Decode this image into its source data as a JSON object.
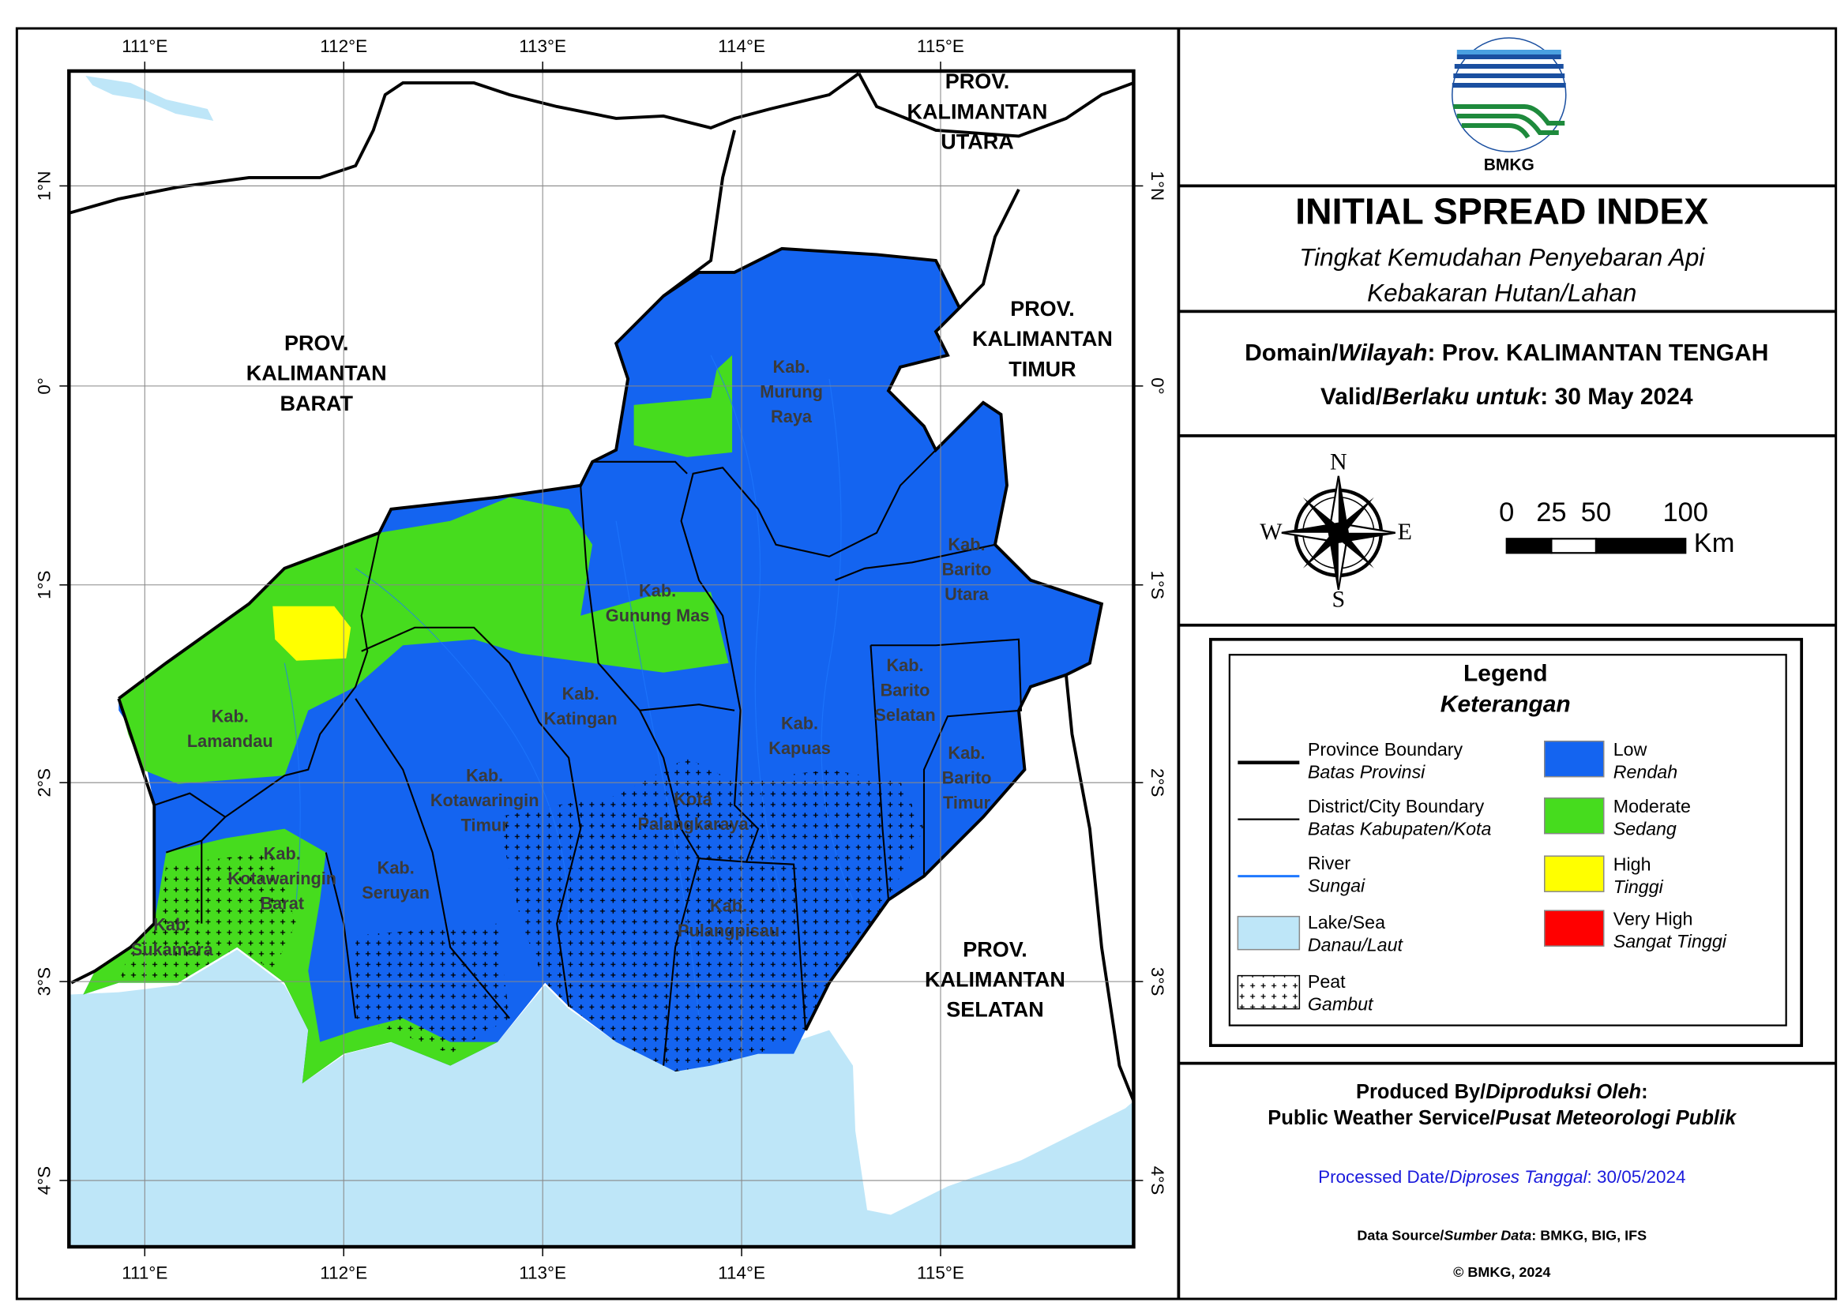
{
  "map": {
    "lon_labels": [
      "111°E",
      "112°E",
      "113°E",
      "114°E",
      "115°E"
    ],
    "lat_labels": [
      "1°N",
      "0°",
      "1°S",
      "2°S",
      "3°S",
      "4°S"
    ],
    "province_labels": [
      [
        "PROV.",
        "KALIMANTAN",
        "UTARA"
      ],
      [
        "PROV.",
        "KALIMANTAN",
        "BARAT"
      ],
      [
        "PROV.",
        "KALIMANTAN",
        "TIMUR"
      ],
      [
        "PROV.",
        "KALIMANTAN",
        "SELATAN"
      ]
    ],
    "district_labels": [
      [
        "Kab.",
        "Murung",
        "Raya"
      ],
      [
        "Kab.",
        "Barito",
        "Utara"
      ],
      [
        "Kab.",
        "Gunung Mas"
      ],
      [
        "Kab.",
        "Barito",
        "Selatan"
      ],
      [
        "Kab.",
        "Katingan"
      ],
      [
        "Kab.",
        "Kapuas"
      ],
      [
        "Kab.",
        "Lamandau"
      ],
      [
        "Kab.",
        "Barito",
        "Timur"
      ],
      [
        "Kab.",
        "Kotawaringin",
        "Timur"
      ],
      [
        "Kota",
        "Palangkaraya"
      ],
      [
        "Kab.",
        "Kotawaringin",
        "Barat"
      ],
      [
        "Kab.",
        "Seruyan"
      ],
      [
        "Kab.",
        "Pulangpisau"
      ],
      [
        "Kab.",
        "Sukamara"
      ]
    ]
  },
  "header": {
    "logo_text": "BMKG",
    "title": "INITIAL SPREAD INDEX",
    "subtitle": [
      "Tingkat Kemudahan Penyebaran Api",
      "Kebakaran Hutan/Lahan"
    ],
    "domain": [
      {
        "text": "Domain/"
      },
      {
        "text": "Wilayah",
        "italic": true
      },
      {
        "text": ": Prov. KALIMANTAN TENGAH"
      }
    ],
    "valid": [
      {
        "text": "Valid/"
      },
      {
        "text": "Berlaku untuk",
        "italic": true
      },
      {
        "text": ": 30 May 2024"
      }
    ]
  },
  "compass": {
    "north": "N",
    "south": "S",
    "east": "E",
    "west": "W"
  },
  "scale": {
    "ticks": [
      0,
      25,
      50,
      100
    ],
    "unit": "Km"
  },
  "legend": {
    "title": "Legend",
    "subtitle": "Keterangan",
    "features": [
      {
        "label": "Province Boundary",
        "sublabel": "Batas Provinsi"
      },
      {
        "label": "District/City Boundary",
        "sublabel": "Batas Kabupaten/Kota"
      },
      {
        "label": "River",
        "sublabel": "Sungai",
        "color": "#1e78ff"
      },
      {
        "label": "Lake/Sea",
        "sublabel": "Danau/Laut",
        "color": "#bee6f8"
      },
      {
        "label": "Peat",
        "sublabel": "Gambut"
      }
    ],
    "classes": [
      {
        "label": "Low",
        "sublabel": "Rendah",
        "color": "#1464f0"
      },
      {
        "label": "Moderate",
        "sublabel": "Sedang",
        "color": "#46dc1e"
      },
      {
        "label": "High",
        "sublabel": "Tinggi",
        "color": "#ffff00"
      },
      {
        "label": "Very High",
        "sublabel": "Sangat Tinggi",
        "color": "#ff0000"
      }
    ]
  },
  "footer": {
    "produced": [
      {
        "text": "Produced By/"
      },
      {
        "text": "Diproduksi Oleh",
        "italic": true
      },
      {
        "text": ":"
      }
    ],
    "service": [
      {
        "text": "Public Weather Service/"
      },
      {
        "text": "Pusat Meteorologi Publik",
        "italic": true
      }
    ],
    "processed": [
      {
        "text": "Processed Date/"
      },
      {
        "text": "Diproses Tanggal",
        "italic": true
      },
      {
        "text": ": 30/05/2024"
      }
    ],
    "source": [
      {
        "text": "Data Source/"
      },
      {
        "text": "Sumber Data",
        "italic": true
      },
      {
        "text": ": BMKG, BIG, IFS"
      }
    ],
    "copyright": "© BMKG, 2024"
  }
}
